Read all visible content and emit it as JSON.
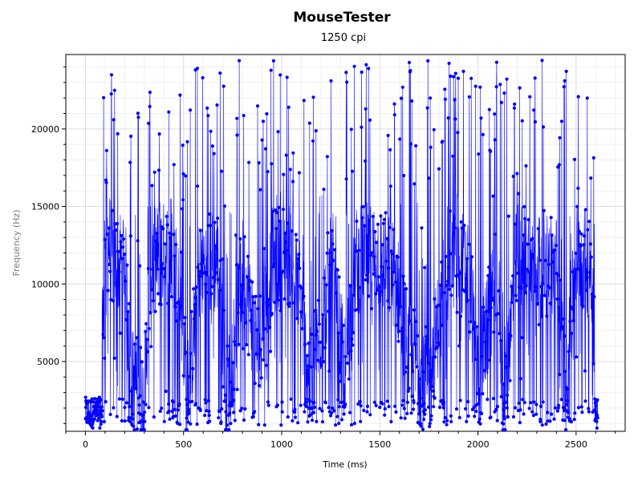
{
  "chart_data": {
    "type": "scatter",
    "title": "MouseTester",
    "subtitle": "1250 cpi",
    "xlabel": "Time (ms)",
    "ylabel": "Frequency (Hz)",
    "xlim": [
      -100,
      2750
    ],
    "ylim": [
      500,
      24800
    ],
    "xticks": [
      0,
      500,
      1000,
      1500,
      2000,
      2500
    ],
    "xtick_labels": [
      "0",
      "500",
      "1000",
      "1500",
      "2000",
      "2500"
    ],
    "yticks": [
      5000,
      10000,
      15000,
      20000
    ],
    "ytick_labels": [
      "5000",
      "10000",
      "15000",
      "20000"
    ],
    "grid": true,
    "legend": "none",
    "series": [
      {
        "style": "line+markers",
        "color": "#0000ff",
        "x_range": [
          0,
          2610
        ],
        "y_range": [
          600,
          24700
        ],
        "description_points": [
          {
            "x": 0,
            "y": 900
          },
          {
            "x": 40,
            "y": 700
          },
          {
            "x": 80,
            "y": 2500
          },
          {
            "x": 100,
            "y": 13500
          },
          {
            "x": 160,
            "y": 11000
          },
          {
            "x": 200,
            "y": 12000
          },
          {
            "x": 230,
            "y": 4000
          },
          {
            "x": 300,
            "y": 2500
          },
          {
            "x": 330,
            "y": 11500
          },
          {
            "x": 420,
            "y": 12000
          },
          {
            "x": 480,
            "y": 10500
          },
          {
            "x": 520,
            "y": 2000
          },
          {
            "x": 580,
            "y": 11000
          },
          {
            "x": 680,
            "y": 11500
          },
          {
            "x": 720,
            "y": 2500
          },
          {
            "x": 800,
            "y": 11000
          },
          {
            "x": 880,
            "y": 5500
          },
          {
            "x": 950,
            "y": 11500
          },
          {
            "x": 1050,
            "y": 12000
          },
          {
            "x": 1150,
            "y": 3500
          },
          {
            "x": 1250,
            "y": 11000
          },
          {
            "x": 1320,
            "y": 4500
          },
          {
            "x": 1380,
            "y": 11500
          },
          {
            "x": 1480,
            "y": 12000
          },
          {
            "x": 1580,
            "y": 10500
          },
          {
            "x": 1650,
            "y": 5500
          },
          {
            "x": 1750,
            "y": 3500
          },
          {
            "x": 1850,
            "y": 12000
          },
          {
            "x": 1950,
            "y": 11000
          },
          {
            "x": 2000,
            "y": 4000
          },
          {
            "x": 2100,
            "y": 10500
          },
          {
            "x": 2130,
            "y": 2500
          },
          {
            "x": 2200,
            "y": 12000
          },
          {
            "x": 2300,
            "y": 11500
          },
          {
            "x": 2400,
            "y": 11000
          },
          {
            "x": 2450,
            "y": 3000
          },
          {
            "x": 2500,
            "y": 12000
          },
          {
            "x": 2580,
            "y": 11000
          },
          {
            "x": 2610,
            "y": 900
          }
        ]
      }
    ]
  }
}
